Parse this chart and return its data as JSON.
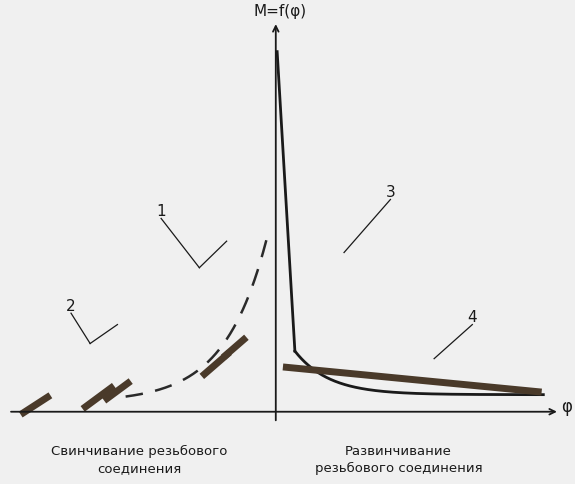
{
  "title": "M=f(φ)",
  "xlabel": "φ",
  "left_label": "Свинчивание резьбового\nсоединения",
  "right_label": "Развинчивание\nрезьбового соединения",
  "background_color": "#f0f0f0",
  "line_color": "#1a1a1a",
  "dashed_color": "#2a2a2a",
  "hatch_color": "#4a3a2a",
  "label1": "1",
  "label2": "2",
  "label3": "3",
  "label4": "4",
  "xlim": [
    -10,
    10.5
  ],
  "ylim": [
    -1.8,
    10.5
  ]
}
